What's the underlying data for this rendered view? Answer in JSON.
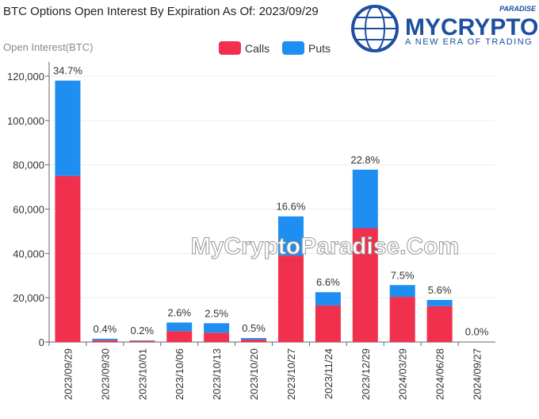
{
  "chart_data": {
    "type": "stacked_bar",
    "title": "BTC Options Open Interest By Expiration As Of: 2023/09/29",
    "y_label": "Open Interest(BTC)",
    "categories": [
      "2023/09/29",
      "2023/09/30",
      "2023/10/01",
      "2023/10/06",
      "2023/10/13",
      "2023/10/20",
      "2023/10/27",
      "2023/11/24",
      "2023/12/29",
      "2024/03/29",
      "2024/06/28",
      "2024/09/27"
    ],
    "series": [
      {
        "name": "Calls",
        "color": "#f0304c",
        "values": [
          75000,
          800,
          500,
          4900,
          4200,
          1100,
          39000,
          16500,
          51400,
          20400,
          16200,
          100
        ]
      },
      {
        "name": "Puts",
        "color": "#1e8ff0",
        "values": [
          43000,
          700,
          200,
          3900,
          4300,
          700,
          17700,
          6000,
          26400,
          5300,
          2800,
          50
        ]
      }
    ],
    "share_labels": [
      "34.7%",
      "0.4%",
      "0.2%",
      "2.6%",
      "2.5%",
      "0.5%",
      "16.6%",
      "6.6%",
      "22.8%",
      "7.5%",
      "5.6%",
      "0.0%"
    ],
    "ylim": [
      0,
      120000
    ],
    "yticks": [
      0,
      {
        "value": 20000,
        "label": "20,000"
      },
      {
        "value": 40000,
        "label": "40,000"
      },
      {
        "value": 60000,
        "label": "60,000"
      },
      {
        "value": 80000,
        "label": "80,000"
      },
      {
        "value": 100000,
        "label": "100,000"
      },
      {
        "value": 120000,
        "label": "120,000"
      }
    ],
    "legend": "top",
    "logo": {
      "brand": "MYCRYPTO",
      "badge": "PARADISE",
      "tagline": "A NEW ERA OF TRADING"
    },
    "watermark": "MyCryptoParadise.Com"
  }
}
